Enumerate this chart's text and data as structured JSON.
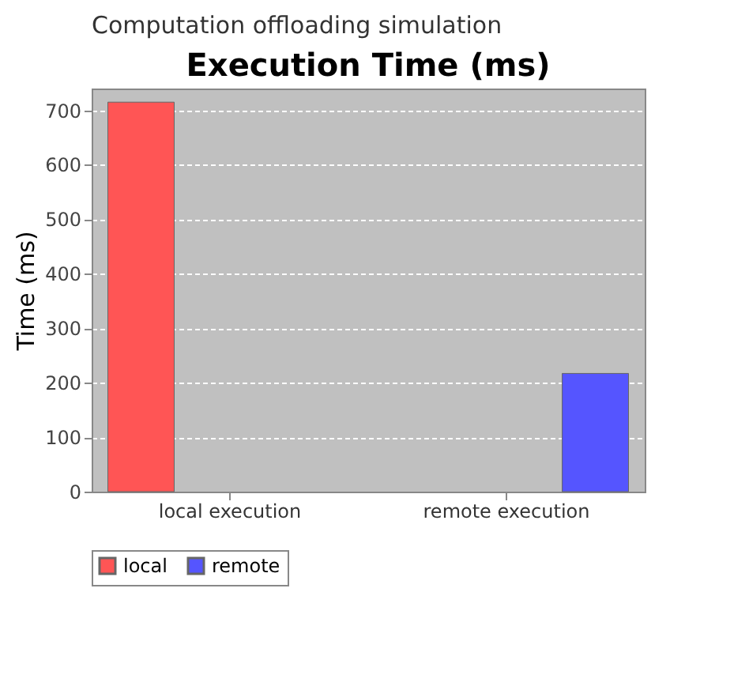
{
  "chart_data": {
    "type": "bar",
    "title": "Execution Time (ms)",
    "ylabel": "Time (ms)",
    "annotations": [
      "Computation offloading simulation"
    ],
    "categories": [
      "local execution",
      "remote execution"
    ],
    "series": [
      {
        "name": "local",
        "color": "#ff5555",
        "values": [
          715,
          null
        ]
      },
      {
        "name": "remote",
        "color": "#5555ff",
        "values": [
          null,
          217
        ]
      }
    ],
    "ylim": [
      0,
      740
    ],
    "yticks": [
      0,
      100,
      200,
      300,
      400,
      500,
      600,
      700
    ],
    "grid": "y",
    "legend": "bottom"
  }
}
